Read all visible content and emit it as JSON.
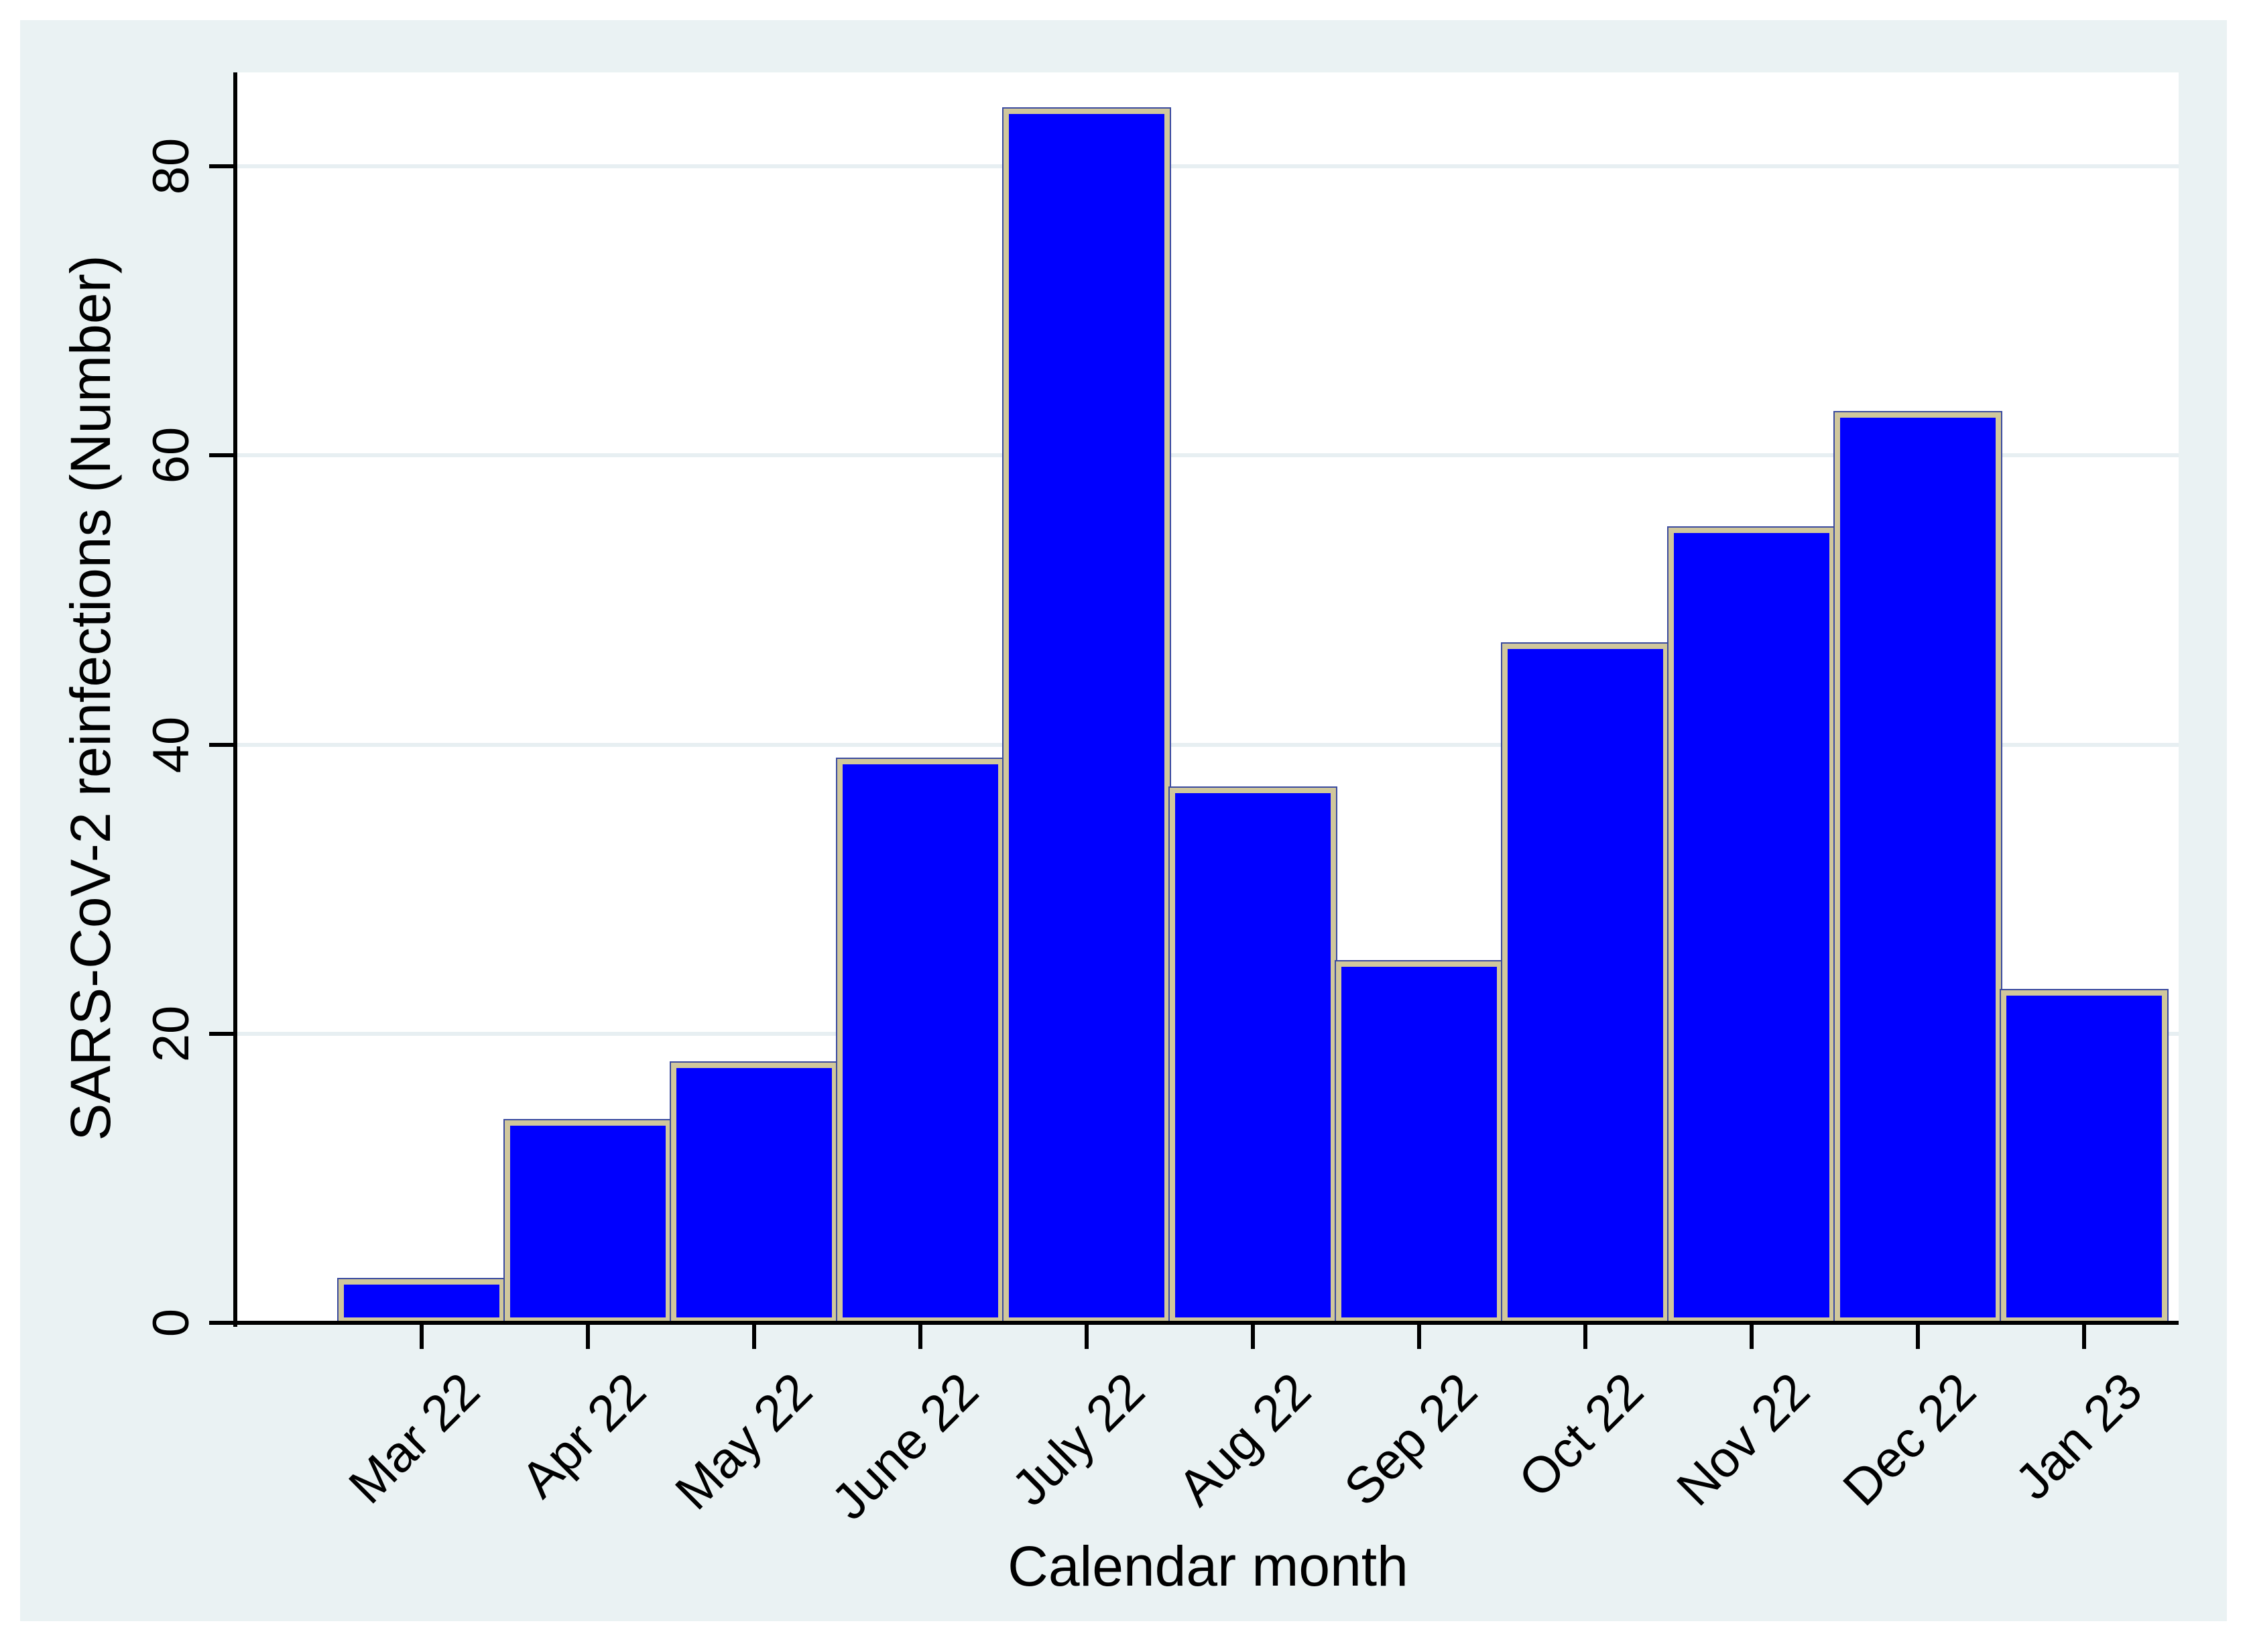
{
  "figure": {
    "background_color": "#eaf2f3",
    "plot_background": "#ffffff",
    "axis_color": "#000000",
    "text_color": "#000000"
  },
  "chart_data": {
    "type": "bar",
    "title": "",
    "xlabel": "Calendar month",
    "ylabel": "SARS-CoV-2 reinfections (Number)",
    "categories": [
      "Mar 22",
      "Apr 22",
      "May 22",
      "June 22",
      "July 22",
      "Aug 22",
      "Sep 22",
      "Oct 22",
      "Nov 22",
      "Dec 22",
      "Jan 23"
    ],
    "values": [
      3,
      14,
      18,
      39,
      84,
      37,
      25,
      47,
      55,
      63,
      23
    ],
    "y_ticks": [
      0,
      20,
      40,
      60,
      80
    ],
    "ylim": [
      0,
      86.5
    ],
    "grid": true,
    "legend_position": "none",
    "bar_fill": "#0000ff",
    "bar_border": "#d0c79c",
    "bar_outline": "#3a4a9f",
    "gridline_color": "#e7eff2"
  }
}
